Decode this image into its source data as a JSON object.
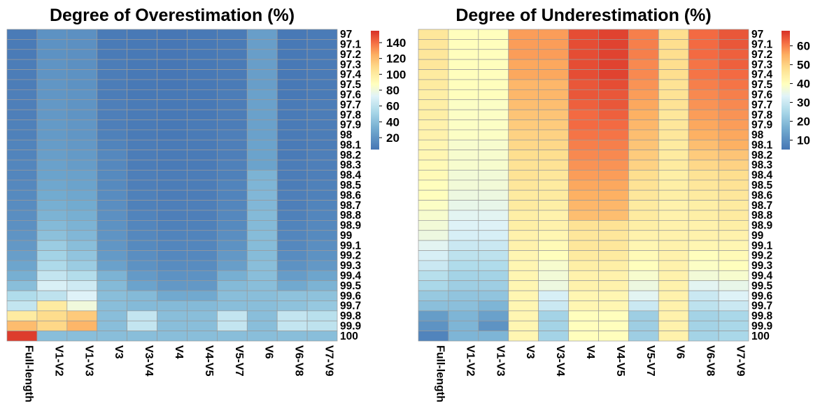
{
  "chart_data": [
    {
      "type": "heatmap",
      "title": "Degree of Overestimation (%)",
      "columns": [
        "Full-length",
        "V1-V2",
        "V1-V3",
        "V3",
        "V3-V4",
        "V4",
        "V4-V5",
        "V5-V7",
        "V6",
        "V6-V8",
        "V7-V9"
      ],
      "rows": [
        "97",
        "97.1",
        "97.2",
        "97.3",
        "97.4",
        "97.5",
        "97.6",
        "97.7",
        "97.8",
        "97.9",
        "98",
        "98.1",
        "98.2",
        "98.3",
        "98.4",
        "98.5",
        "98.6",
        "98.7",
        "98.8",
        "98.9",
        "99",
        "99.1",
        "99.2",
        "99.3",
        "99.4",
        "99.5",
        "99.6",
        "99.7",
        "99.8",
        "99.9",
        "100"
      ],
      "legend_ticks": [
        20,
        40,
        60,
        80,
        100,
        120,
        140
      ],
      "color_range": [
        5,
        155
      ],
      "values": [
        [
          8,
          19,
          18,
          8,
          7,
          6,
          7,
          8,
          25,
          7,
          8
        ],
        [
          8,
          19,
          18,
          8,
          7,
          6,
          7,
          8,
          25,
          7,
          8
        ],
        [
          8,
          19,
          18,
          8,
          7,
          6,
          7,
          8,
          25,
          7,
          8
        ],
        [
          9,
          20,
          18,
          9,
          7,
          6,
          7,
          8,
          25,
          7,
          8
        ],
        [
          9,
          20,
          19,
          9,
          7,
          6,
          7,
          8,
          25,
          7,
          8
        ],
        [
          9,
          21,
          19,
          9,
          7,
          6,
          7,
          8,
          25,
          7,
          8
        ],
        [
          10,
          21,
          20,
          9,
          7,
          7,
          7,
          9,
          26,
          7,
          8
        ],
        [
          10,
          22,
          20,
          10,
          8,
          7,
          7,
          9,
          26,
          8,
          9
        ],
        [
          10,
          22,
          20,
          10,
          8,
          7,
          7,
          9,
          26,
          8,
          9
        ],
        [
          11,
          23,
          21,
          10,
          8,
          7,
          8,
          9,
          26,
          8,
          9
        ],
        [
          11,
          23,
          21,
          11,
          8,
          7,
          8,
          10,
          26,
          8,
          9
        ],
        [
          12,
          24,
          22,
          12,
          9,
          8,
          8,
          10,
          27,
          8,
          9
        ],
        [
          12,
          25,
          23,
          14,
          9,
          8,
          8,
          10,
          27,
          8,
          10
        ],
        [
          13,
          26,
          24,
          14,
          9,
          8,
          8,
          11,
          27,
          9,
          10
        ],
        [
          13,
          27,
          26,
          15,
          10,
          9,
          9,
          11,
          35,
          9,
          10
        ],
        [
          14,
          29,
          27,
          15,
          10,
          9,
          9,
          12,
          36,
          9,
          11
        ],
        [
          15,
          31,
          29,
          16,
          11,
          9,
          9,
          12,
          37,
          10,
          11
        ],
        [
          16,
          33,
          31,
          17,
          11,
          10,
          10,
          13,
          37,
          10,
          12
        ],
        [
          17,
          35,
          33,
          18,
          12,
          10,
          10,
          14,
          38,
          11,
          13
        ],
        [
          18,
          38,
          35,
          19,
          13,
          11,
          11,
          15,
          38,
          12,
          14
        ],
        [
          20,
          41,
          37,
          20,
          14,
          12,
          12,
          17,
          39,
          13,
          15
        ],
        [
          22,
          47,
          40,
          21,
          15,
          13,
          13,
          19,
          39,
          14,
          17
        ],
        [
          25,
          50,
          43,
          23,
          17,
          14,
          14,
          22,
          39,
          16,
          19
        ],
        [
          28,
          54,
          47,
          26,
          19,
          16,
          16,
          25,
          40,
          19,
          22
        ],
        [
          33,
          62,
          56,
          35,
          23,
          19,
          19,
          33,
          40,
          24,
          28
        ],
        [
          40,
          70,
          66,
          38,
          27,
          22,
          22,
          38,
          40,
          30,
          35
        ],
        [
          55,
          60,
          72,
          40,
          38,
          30,
          30,
          40,
          40,
          42,
          42
        ],
        [
          62,
          100,
          80,
          40,
          38,
          38,
          38,
          40,
          40,
          42,
          45
        ],
        [
          100,
          108,
          115,
          40,
          62,
          40,
          40,
          62,
          40,
          62,
          58
        ],
        [
          120,
          110,
          122,
          40,
          62,
          40,
          40,
          62,
          40,
          62,
          60
        ],
        [
          152,
          40,
          40,
          40,
          40,
          40,
          40,
          40,
          40,
          40,
          40
        ]
      ]
    },
    {
      "type": "heatmap",
      "title": "Degree of Underestimation (%)",
      "columns": [
        "Full-length",
        "V1-V2",
        "V1-V3",
        "V3",
        "V3-V4",
        "V4",
        "V4-V5",
        "V5-V7",
        "V6",
        "V6-V8",
        "V7-V9"
      ],
      "rows": [
        "97",
        "97.1",
        "97.2",
        "97.3",
        "97.4",
        "97.5",
        "97.6",
        "97.7",
        "97.8",
        "97.9",
        "98",
        "98.1",
        "98.2",
        "98.3",
        "98.4",
        "98.5",
        "98.6",
        "98.7",
        "98.8",
        "98.9",
        "99",
        "99.1",
        "99.2",
        "99.3",
        "99.4",
        "99.5",
        "99.6",
        "99.7",
        "99.8",
        "99.9",
        "100"
      ],
      "legend_ticks": [
        10,
        20,
        30,
        40,
        50,
        60
      ],
      "color_range": [
        5,
        68
      ],
      "values": [
        [
          46,
          40,
          40,
          57,
          57,
          65,
          66,
          60,
          48,
          62,
          64
        ],
        [
          46,
          40,
          40,
          57,
          57,
          65,
          66,
          60,
          48,
          62,
          64
        ],
        [
          46,
          40,
          40,
          57,
          57,
          65,
          66,
          60,
          48,
          62,
          63
        ],
        [
          46,
          40,
          40,
          56,
          56,
          65,
          66,
          59,
          48,
          61,
          63
        ],
        [
          45,
          40,
          40,
          56,
          56,
          65,
          66,
          59,
          48,
          61,
          62
        ],
        [
          45,
          40,
          40,
          54,
          54,
          64,
          65,
          58,
          47,
          60,
          61
        ],
        [
          44,
          40,
          40,
          54,
          54,
          64,
          64,
          57,
          47,
          59,
          60
        ],
        [
          44,
          39,
          39,
          53,
          53,
          63,
          64,
          56,
          47,
          58,
          59
        ],
        [
          44,
          39,
          39,
          52,
          52,
          62,
          63,
          55,
          46,
          57,
          58
        ],
        [
          43,
          39,
          39,
          51,
          51,
          62,
          62,
          54,
          46,
          56,
          57
        ],
        [
          43,
          39,
          39,
          50,
          50,
          61,
          61,
          53,
          46,
          55,
          56
        ],
        [
          42,
          38,
          38,
          49,
          49,
          60,
          60,
          52,
          45,
          53,
          55
        ],
        [
          42,
          38,
          38,
          48,
          48,
          59,
          59,
          51,
          45,
          51,
          52
        ],
        [
          41,
          38,
          38,
          47,
          47,
          58,
          58,
          50,
          45,
          49,
          50
        ],
        [
          41,
          37,
          37,
          47,
          46,
          57,
          57,
          48,
          44,
          47,
          48
        ],
        [
          40,
          37,
          37,
          46,
          45,
          56,
          56,
          47,
          44,
          46,
          47
        ],
        [
          40,
          36,
          36,
          45,
          45,
          55,
          55,
          46,
          44,
          45,
          46
        ],
        [
          39,
          35,
          35,
          45,
          44,
          54,
          54,
          45,
          43,
          44,
          45
        ],
        [
          38,
          34,
          34,
          44,
          43,
          53,
          53,
          45,
          43,
          44,
          45
        ],
        [
          37,
          33,
          33,
          44,
          43,
          47,
          47,
          44,
          43,
          43,
          44
        ],
        [
          36,
          32,
          32,
          43,
          42,
          46,
          46,
          43,
          43,
          43,
          43
        ],
        [
          34,
          30,
          30,
          43,
          41,
          46,
          46,
          42,
          43,
          42,
          42
        ],
        [
          32,
          28,
          28,
          42,
          40,
          45,
          45,
          41,
          43,
          40,
          41
        ],
        [
          30,
          26,
          26,
          42,
          38,
          44,
          44,
          40,
          43,
          39,
          40
        ],
        [
          27,
          24,
          24,
          42,
          37,
          43,
          43,
          38,
          43,
          37,
          38
        ],
        [
          25,
          23,
          23,
          42,
          36,
          43,
          43,
          36,
          43,
          34,
          35
        ],
        [
          22,
          21,
          21,
          42,
          32,
          42,
          42,
          34,
          43,
          30,
          33
        ],
        [
          20,
          20,
          18,
          42,
          30,
          42,
          42,
          30,
          43,
          28,
          30
        ],
        [
          13,
          18,
          14,
          42,
          24,
          40,
          40,
          23,
          43,
          24,
          25
        ],
        [
          11,
          18,
          11,
          42,
          24,
          40,
          40,
          23,
          43,
          24,
          25
        ],
        [
          8,
          18,
          18,
          42,
          24,
          40,
          40,
          23,
          43,
          24,
          25
        ]
      ]
    }
  ]
}
